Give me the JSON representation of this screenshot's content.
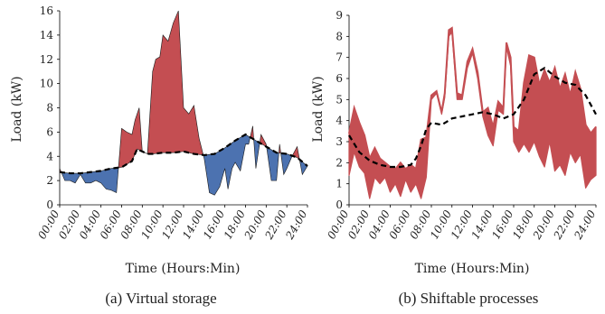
{
  "colors": {
    "above": "#c44e52",
    "below": "#4c72b0",
    "outline": "#1a1a1a",
    "baseline": "#000000"
  },
  "chart_data": [
    {
      "type": "area",
      "caption": "(a) Virtual storage",
      "xlabel": "Time (Hours:Min)",
      "ylabel": "Load (kW)",
      "xlim": [
        0,
        24
      ],
      "ylim": [
        0,
        16
      ],
      "yticks": [
        0,
        2,
        4,
        6,
        8,
        10,
        12,
        14,
        16
      ],
      "xtick_labels": [
        "00:00",
        "02:00",
        "04:00",
        "06:00",
        "08:00",
        "10:00",
        "12:00",
        "14:00",
        "16:00",
        "18:00",
        "20:00",
        "22:00",
        "24:00"
      ],
      "grid": false,
      "legend": "none",
      "series": [
        {
          "role": "load",
          "x": [
            0,
            0.5,
            1,
            1.5,
            2,
            2.5,
            3,
            3.5,
            4,
            4.5,
            5,
            5.5,
            6,
            6.5,
            7,
            7.3,
            7.7,
            8,
            8.5,
            9,
            9.3,
            9.7,
            10,
            10.5,
            11,
            11.5,
            12,
            12.5,
            13,
            13.5,
            14,
            14.5,
            15,
            15.5,
            16,
            16.3,
            16.7,
            17,
            17.5,
            18,
            18.3,
            18.7,
            19,
            19.5,
            20,
            20.5,
            21,
            21.3,
            21.7,
            22,
            22.5,
            23,
            23.5,
            24
          ],
          "y": [
            3.0,
            2.0,
            2.0,
            1.8,
            2.5,
            1.8,
            1.8,
            2.0,
            1.8,
            1.3,
            1.2,
            1.0,
            6.3,
            6.0,
            5.8,
            7.0,
            8.0,
            4.4,
            4.2,
            11.0,
            12.0,
            12.2,
            14.0,
            13.5,
            15.0,
            16.0,
            8.0,
            7.5,
            8.2,
            5.5,
            3.8,
            1.0,
            0.8,
            1.5,
            3.0,
            1.3,
            3.0,
            3.5,
            2.8,
            5.0,
            5.0,
            6.5,
            3.0,
            5.8,
            5.0,
            2.0,
            2.0,
            5.0,
            2.5,
            3.0,
            4.0,
            4.8,
            2.5,
            3.2
          ]
        },
        {
          "role": "baseline",
          "x": [
            0,
            1,
            2,
            3,
            4,
            5,
            6,
            7,
            7.5,
            8,
            8.5,
            9,
            10,
            11,
            12,
            13,
            14,
            15,
            16,
            17,
            18,
            19,
            20,
            21,
            22,
            23,
            24
          ],
          "y": [
            2.7,
            2.6,
            2.6,
            2.7,
            2.8,
            3.0,
            3.1,
            3.6,
            4.6,
            4.4,
            4.2,
            4.2,
            4.3,
            4.3,
            4.4,
            4.2,
            4.1,
            4.2,
            4.7,
            5.3,
            5.8,
            5.3,
            4.8,
            4.3,
            4.2,
            3.9,
            3.2
          ]
        }
      ]
    },
    {
      "type": "area",
      "caption": "(b) Shiftable processes",
      "xlabel": "Time (Hours:Min)",
      "ylabel": "Load (kW)",
      "xlim": [
        0,
        24
      ],
      "ylim": [
        0,
        9
      ],
      "yticks": [
        0,
        1,
        2,
        3,
        4,
        5,
        6,
        7,
        8,
        9
      ],
      "xtick_labels": [
        "00:00",
        "02:00",
        "04:00",
        "06:00",
        "08:00",
        "10:00",
        "12:00",
        "14:00",
        "16:00",
        "18:00",
        "20:00",
        "22:00",
        "24:00"
      ],
      "grid": false,
      "legend": "none",
      "series": [
        {
          "role": "upper",
          "x": [
            0,
            0.5,
            1,
            1.5,
            2,
            2.5,
            3,
            3.5,
            4,
            4.5,
            5,
            5.5,
            6,
            6.5,
            7,
            7.5,
            8,
            8.5,
            9,
            9.3,
            9.7,
            10,
            10.5,
            11,
            11.5,
            12,
            12.5,
            13,
            13.5,
            14,
            14.5,
            15,
            15.3,
            15.7,
            16,
            16.5,
            17,
            17.5,
            18,
            18.5,
            19,
            19.5,
            20,
            20.5,
            21,
            21.5,
            22,
            22.5,
            23,
            23.5,
            24
          ],
          "y": [
            3.4,
            4.6,
            3.9,
            3.3,
            2.2,
            2.7,
            2.2,
            2.0,
            1.8,
            1.7,
            2.0,
            1.7,
            1.9,
            1.7,
            3.1,
            3.2,
            5.2,
            5.4,
            4.4,
            5.3,
            8.3,
            8.4,
            5.3,
            5.2,
            6.8,
            7.4,
            6.3,
            4.4,
            4.6,
            3.7,
            4.9,
            4.6,
            7.7,
            7.0,
            3.7,
            3.5,
            5.8,
            7.1,
            7.0,
            5.7,
            6.4,
            5.8,
            6.5,
            5.5,
            6.2,
            5.2,
            6.3,
            5.5,
            3.8,
            3.4,
            3.7
          ]
        },
        {
          "role": "lower",
          "x": [
            0,
            0.5,
            1,
            1.5,
            2,
            2.5,
            3,
            3.5,
            4,
            4.5,
            5,
            5.5,
            6,
            6.5,
            7,
            7.5,
            8,
            8.5,
            9,
            9.3,
            9.7,
            10,
            10.5,
            11,
            11.5,
            12,
            12.5,
            13,
            13.5,
            14,
            14.5,
            15,
            15.3,
            15.7,
            16,
            16.5,
            17,
            17.5,
            18,
            18.5,
            19,
            19.5,
            20,
            20.5,
            21,
            21.5,
            22,
            22.5,
            23,
            23.5,
            24
          ],
          "y": [
            1.4,
            2.5,
            1.8,
            1.5,
            0.3,
            1.3,
            1.0,
            1.3,
            0.6,
            1.0,
            0.4,
            1.2,
            0.6,
            1.0,
            0.3,
            1.3,
            5.0,
            5.3,
            4.3,
            5.1,
            8.0,
            8.2,
            5.0,
            5.0,
            6.5,
            7.2,
            6.0,
            4.2,
            3.3,
            2.8,
            4.5,
            4.3,
            7.5,
            6.6,
            3.0,
            2.5,
            2.9,
            2.5,
            3.0,
            2.3,
            1.8,
            3.0,
            1.6,
            1.9,
            1.4,
            2.5,
            2.0,
            2.4,
            0.8,
            1.2,
            1.4
          ]
        },
        {
          "role": "baseline",
          "x": [
            0,
            1,
            2,
            3,
            4,
            5,
            6,
            6.5,
            7,
            7.5,
            8,
            9,
            10,
            11,
            12,
            13,
            14,
            15,
            16,
            17,
            18,
            19,
            20,
            21,
            22,
            23,
            24
          ],
          "y": [
            3.3,
            2.5,
            2.1,
            1.9,
            1.8,
            1.8,
            1.9,
            2.2,
            2.8,
            3.6,
            3.9,
            3.8,
            4.1,
            4.2,
            4.3,
            4.4,
            4.3,
            4.1,
            4.3,
            5.0,
            6.2,
            6.5,
            6.1,
            5.8,
            5.7,
            5.2,
            4.3
          ]
        }
      ]
    }
  ]
}
